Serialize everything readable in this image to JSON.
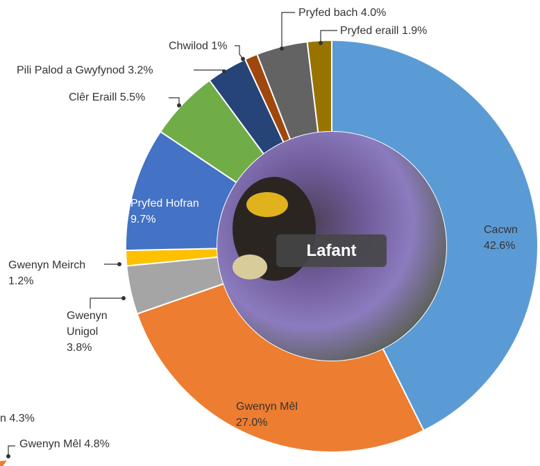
{
  "chart_data": {
    "type": "donut",
    "center_label": "Lafant",
    "categories": [
      "Cacwn",
      "Gwenyn Mêl",
      "Gwenyn Unigol",
      "Gwenyn Meirch",
      "Pryfed Hofran",
      "Clêr Eraill",
      "Pili Palod a Gwyfynod",
      "Chwilod",
      "Pryfed bach",
      "Pryfed eraill"
    ],
    "values": [
      42.6,
      27.0,
      3.8,
      1.2,
      9.7,
      5.5,
      3.2,
      1,
      4.0,
      1.9
    ],
    "value_labels": [
      "42.6%",
      "27.0%",
      "3.8%",
      "1.2%",
      "9.7%",
      "5.5%",
      "3.2%",
      "1%",
      "4.0%",
      "1.9%"
    ],
    "colors": [
      "#5b9bd5",
      "#ed7d31",
      "#a5a5a5",
      "#ffc000",
      "#4472c4",
      "#70ad47",
      "#264478",
      "#9e480e",
      "#636363",
      "#997300"
    ],
    "cropped_labels": [
      "n 4.3%",
      "Gwenyn Mêl 4.8%"
    ]
  }
}
